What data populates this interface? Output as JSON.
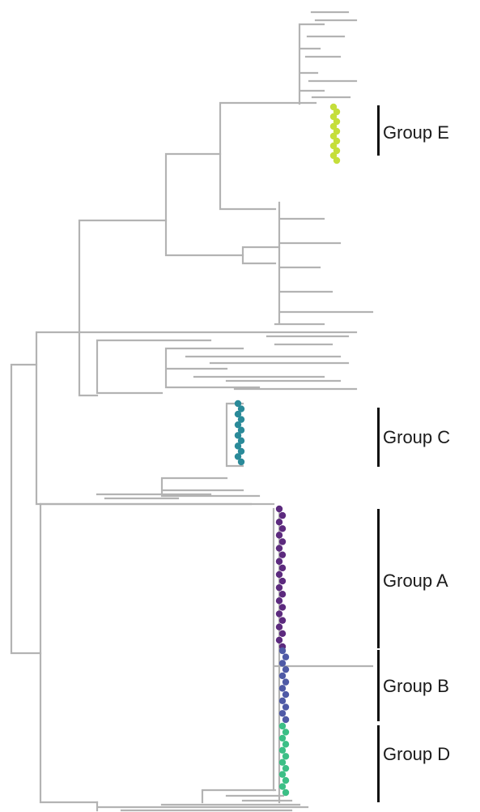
{
  "groups": [
    {
      "id": "E",
      "label": "Group E",
      "color": "#c5de3b"
    },
    {
      "id": "C",
      "label": "Group C",
      "color": "#2a8a99"
    },
    {
      "id": "A",
      "label": "Group A",
      "color": "#5c2a7e"
    },
    {
      "id": "B",
      "label": "Group B",
      "color": "#4f5aa6"
    },
    {
      "id": "D",
      "label": "Group D",
      "color": "#3cbf86"
    }
  ],
  "colors": {
    "branch": "#b3b3b3",
    "bar": "#111111",
    "background": "#ffffff"
  }
}
